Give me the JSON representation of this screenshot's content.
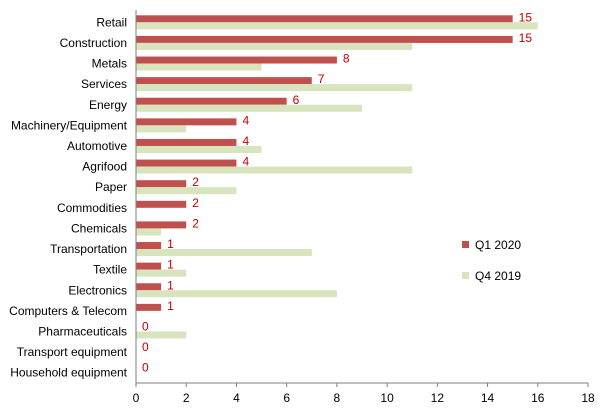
{
  "chart_data": {
    "type": "bar",
    "orientation": "horizontal",
    "title": "",
    "xlabel": "",
    "ylabel": "",
    "xlim": [
      0,
      18
    ],
    "x_ticks": [
      0,
      2,
      4,
      6,
      8,
      10,
      12,
      14,
      16,
      18
    ],
    "grid": false,
    "legend_position": "right",
    "categories": [
      "Retail",
      "Construction",
      "Metals",
      "Services",
      "Energy",
      "Machinery/Equipment",
      "Automotive",
      "Agrifood",
      "Paper",
      "Commodities",
      "Chemicals",
      "Transportation",
      "Textile",
      "Electronics",
      "Computers & Telecom",
      "Pharmaceuticals",
      "Transport equipment",
      "Household equipment"
    ],
    "series": [
      {
        "name": "Q1 2020",
        "color": "#c0504d",
        "values": [
          15,
          15,
          8,
          7,
          6,
          4,
          4,
          4,
          2,
          2,
          2,
          1,
          1,
          1,
          1,
          0,
          0,
          0
        ],
        "data_labels": true
      },
      {
        "name": "Q4 2019",
        "color": "#d7e4bd",
        "values": [
          16,
          11,
          5,
          11,
          9,
          2,
          5,
          11,
          4,
          0,
          1,
          7,
          2,
          8,
          0,
          2,
          0,
          0
        ],
        "data_labels": false
      }
    ],
    "data_label_color": "#c00000",
    "axis_color": "#7f7f7f"
  }
}
